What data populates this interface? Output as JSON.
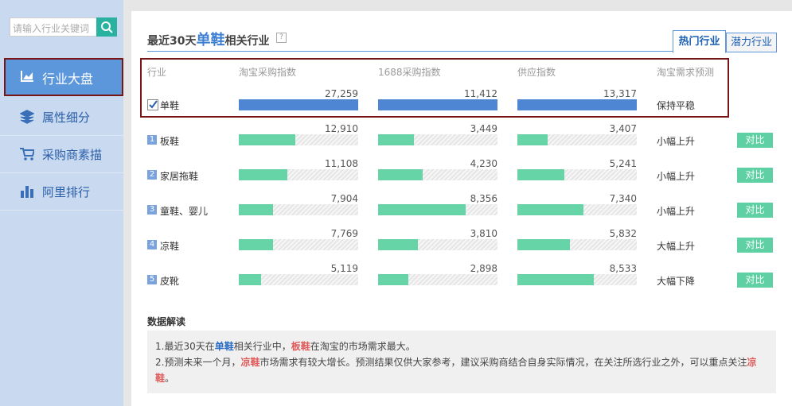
{
  "search": {
    "placeholder": "请输入行业关键词"
  },
  "nav": [
    {
      "label": "行业大盘",
      "active": true
    },
    {
      "label": "属性细分"
    },
    {
      "label": "采购商素描"
    },
    {
      "label": "阿里排行"
    }
  ],
  "header": {
    "prefix": "最近30天",
    "keyword": "单鞋",
    "suffix": "相关行业",
    "help": "?"
  },
  "tabs": [
    {
      "label": "热门行业",
      "active": true
    },
    {
      "label": "潜力行业"
    }
  ],
  "table": {
    "columns": [
      "行业",
      "淘宝采购指数",
      "1688采购指数",
      "供应指数",
      "淘宝需求预测"
    ],
    "main": {
      "name": "单鞋",
      "values": [
        {
          "value": 27259,
          "label": "27,259"
        },
        {
          "value": 11412,
          "label": "11,412"
        },
        {
          "value": 13317,
          "label": "13,317"
        }
      ],
      "forecast": "保持平稳"
    },
    "compare_label": "对比",
    "rows": [
      {
        "rank": "1",
        "name": "板鞋",
        "values": [
          {
            "value": 12910,
            "label": "12,910"
          },
          {
            "value": 3449,
            "label": "3,449"
          },
          {
            "value": 3407,
            "label": "3,407"
          }
        ],
        "forecast": "小幅上升"
      },
      {
        "rank": "2",
        "name": "家居拖鞋",
        "values": [
          {
            "value": 11108,
            "label": "11,108"
          },
          {
            "value": 4230,
            "label": "4,230"
          },
          {
            "value": 5241,
            "label": "5,241"
          }
        ],
        "forecast": "小幅上升"
      },
      {
        "rank": "3",
        "name": "童鞋、婴儿",
        "values": [
          {
            "value": 7904,
            "label": "7,904"
          },
          {
            "value": 8356,
            "label": "8,356"
          },
          {
            "value": 7340,
            "label": "7,340"
          }
        ],
        "forecast": "小幅上升"
      },
      {
        "rank": "4",
        "name": "凉鞋",
        "values": [
          {
            "value": 7769,
            "label": "7,769"
          },
          {
            "value": 3810,
            "label": "3,810"
          },
          {
            "value": 5832,
            "label": "5,832"
          }
        ],
        "forecast": "大幅上升"
      },
      {
        "rank": "5",
        "name": "皮靴",
        "values": [
          {
            "value": 5119,
            "label": "5,119"
          },
          {
            "value": 2898,
            "label": "2,898"
          },
          {
            "value": 8533,
            "label": "8,533"
          }
        ],
        "forecast": "大幅下降"
      }
    ]
  },
  "analysis": {
    "title": "数据解读",
    "lines": [
      [
        {
          "text": "1.最近30天在"
        },
        {
          "text": "单鞋",
          "emphasis": "blue"
        },
        {
          "text": "相关行业中，"
        },
        {
          "text": "板鞋",
          "emphasis": "red"
        },
        {
          "text": "在淘宝的市场需求最大。"
        }
      ],
      [
        {
          "text": "2.预测未来一个月，"
        },
        {
          "text": "凉鞋",
          "emphasis": "red"
        },
        {
          "text": "市场需求有较大增长。预测结果仅供大家参考，建议采购商结合自身实际情况，在关注所选行业之外，可以重点关注"
        },
        {
          "text": "凉鞋",
          "emphasis": "red"
        },
        {
          "text": "。"
        }
      ]
    ]
  }
}
